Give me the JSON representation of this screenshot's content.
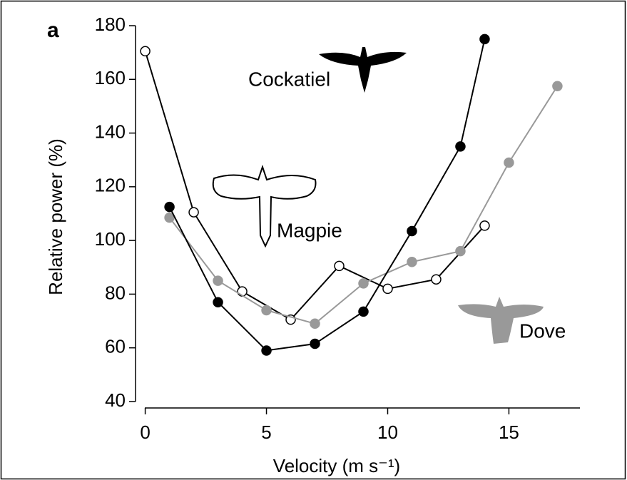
{
  "chart_data": {
    "type": "line",
    "panel_label": "a",
    "x_label": "Velocity (m s⁻¹)",
    "y_label": "Relative power (%)",
    "xlim": [
      -0.4,
      17.9
    ],
    "xticks": [
      0,
      5,
      10,
      15
    ],
    "ylim": [
      37.6,
      180
    ],
    "yticks": [
      40,
      60,
      80,
      100,
      120,
      140,
      160,
      180
    ],
    "series": [
      {
        "name": "Magpie",
        "color": "#000000",
        "marker_fill": "#ffffff",
        "x": [
          0,
          2,
          4,
          6,
          8,
          10,
          12,
          14
        ],
        "values": [
          170.5,
          110.5,
          81,
          70.5,
          90.5,
          82,
          85.5,
          105.5
        ]
      },
      {
        "name": "Dove",
        "color": "#999999",
        "marker_fill": "#999999",
        "x": [
          1,
          3,
          5,
          7,
          9,
          11,
          13,
          15,
          17
        ],
        "values": [
          108.5,
          85,
          74,
          69,
          84,
          92,
          96,
          129,
          157.5
        ]
      },
      {
        "name": "Cockatiel",
        "color": "#000000",
        "marker_fill": "#000000",
        "x": [
          1,
          3,
          5,
          7,
          9,
          11,
          13,
          14
        ],
        "values": [
          112.5,
          77,
          59,
          61.5,
          73.5,
          103.5,
          135,
          175
        ]
      }
    ]
  }
}
